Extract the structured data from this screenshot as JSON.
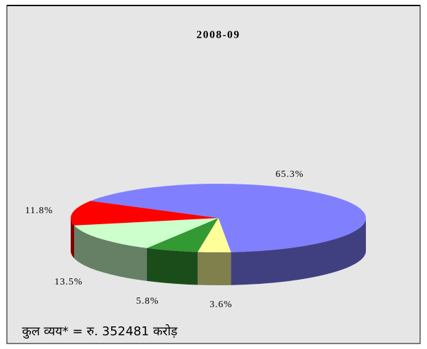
{
  "chart_data": {
    "type": "pie",
    "title": "2008-09",
    "values": [
      65.3,
      3.6,
      5.8,
      13.5,
      11.8
    ],
    "value_labels": [
      "65.3%",
      "3.6%",
      "5.8%",
      "13.5%",
      "11.8%"
    ],
    "colors": [
      "#8080ff",
      "#ffff99",
      "#339933",
      "#ccffcc",
      "#ff0000"
    ],
    "annotation": "कुल व्यय* = रु. 352481 करोड़"
  }
}
